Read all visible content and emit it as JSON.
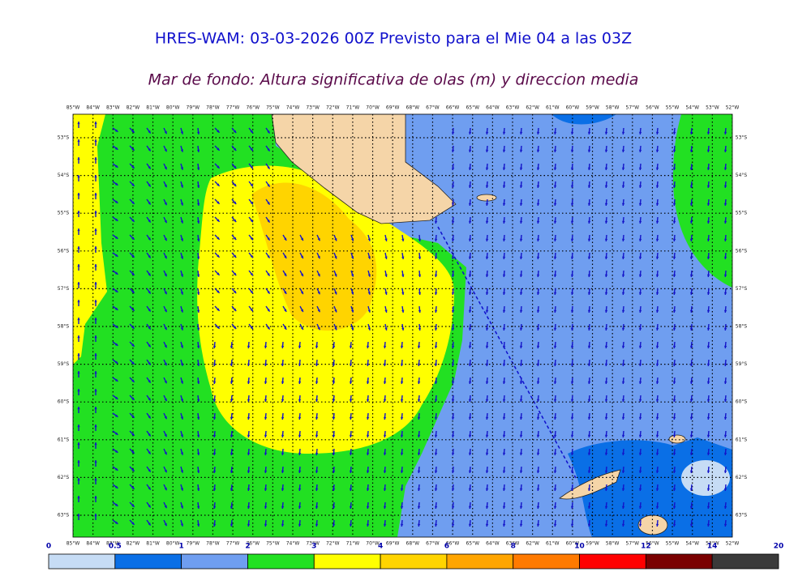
{
  "header": {
    "title": "HRES-WAM: 03-03-2026 00Z Previsto para el Mie 04 a las 03Z",
    "subtitle": "Mar de fondo: Altura significativa de olas (m) y direccion media"
  },
  "map": {
    "lon_labels": [
      "85°W",
      "84°W",
      "83°W",
      "82°W",
      "81°W",
      "80°W",
      "79°W",
      "78°W",
      "77°W",
      "76°W",
      "75°W",
      "74°W",
      "73°W",
      "72°W",
      "71°W",
      "70°W",
      "69°W",
      "68°W",
      "67°W",
      "66°W",
      "65°W",
      "64°W",
      "63°W",
      "62°W",
      "61°W",
      "60°W",
      "59°W",
      "58°W",
      "57°W",
      "56°W",
      "55°W",
      "54°W",
      "53°W",
      "52°W"
    ],
    "lat_labels": [
      "53°S",
      "54°S",
      "55°S",
      "56°S",
      "57°S",
      "58°S",
      "59°S",
      "60°S",
      "61°S",
      "62°S",
      "63°S"
    ]
  },
  "colorbar": {
    "levels": [
      0,
      0.5,
      1,
      2,
      3,
      4,
      6,
      8,
      10,
      12,
      14,
      20
    ],
    "colors": [
      "#c6dcf5",
      "#0a6fe6",
      "#6f9ef0",
      "#22e022",
      "#ffff00",
      "#ffd400",
      "#ffa500",
      "#ff7a00",
      "#ff0000",
      "#7a0000",
      "#3a3a3a"
    ]
  }
}
